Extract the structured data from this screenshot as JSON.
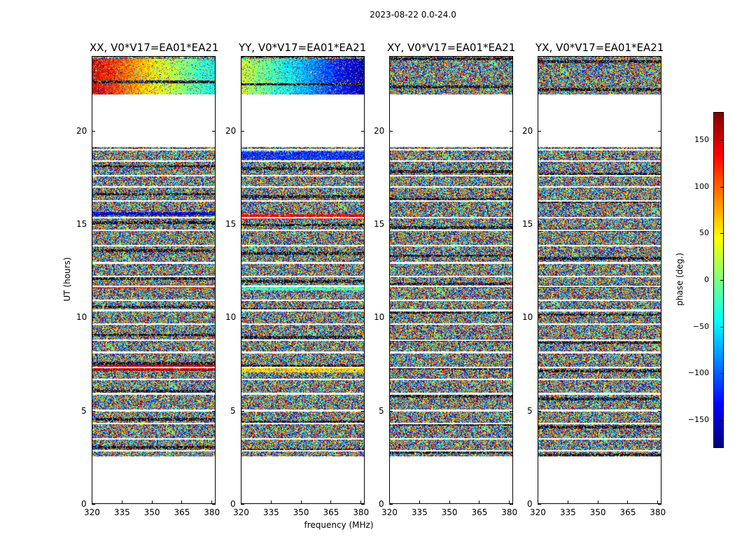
{
  "chart_data": {
    "type": "heatmap",
    "suptitle": "2023-08-22 0.0-24.0",
    "xlabel": "frequency (MHz)",
    "ylabel": "UT (hours)",
    "xlim": [
      320,
      382
    ],
    "ylim": [
      0,
      24
    ],
    "xticks": [
      320,
      335,
      350,
      365,
      380
    ],
    "yticks": [
      0,
      5,
      10,
      15,
      20
    ],
    "colorbar": {
      "label": "phase (deg.)",
      "range": [
        -180,
        180
      ],
      "ticks": [
        150,
        100,
        50,
        0,
        -50,
        -100,
        -150
      ],
      "tick_labels": [
        "150",
        "100",
        "50",
        "0",
        "−50",
        "−100",
        "−150"
      ],
      "colormap": "jet"
    },
    "data_coverage_hours": [
      [
        2.6,
        19.2
      ],
      [
        22.0,
        24.0
      ]
    ],
    "panels": [
      {
        "title": "XX, V0*V17=EA01*EA21",
        "name": "xx",
        "coherent_bands": [
          [
            22.0,
            23.9,
            150
          ],
          [
            15.5,
            15.7,
            -150
          ],
          [
            11.6,
            11.8,
            120
          ],
          [
            7.2,
            7.5,
            160
          ]
        ]
      },
      {
        "title": "YY, V0*V17=EA01*EA21",
        "name": "yy",
        "coherent_bands": [
          [
            22.0,
            23.9,
            30
          ],
          [
            18.5,
            18.9,
            -120
          ],
          [
            15.3,
            15.6,
            140
          ],
          [
            11.5,
            11.8,
            -20
          ],
          [
            7.1,
            7.5,
            60
          ]
        ]
      },
      {
        "title": "XY, V0*V17=EA01*EA21",
        "name": "xy",
        "coherent_bands": []
      },
      {
        "title": "YX, V0*V17=EA01*EA21",
        "name": "yx",
        "coherent_bands": []
      }
    ]
  }
}
